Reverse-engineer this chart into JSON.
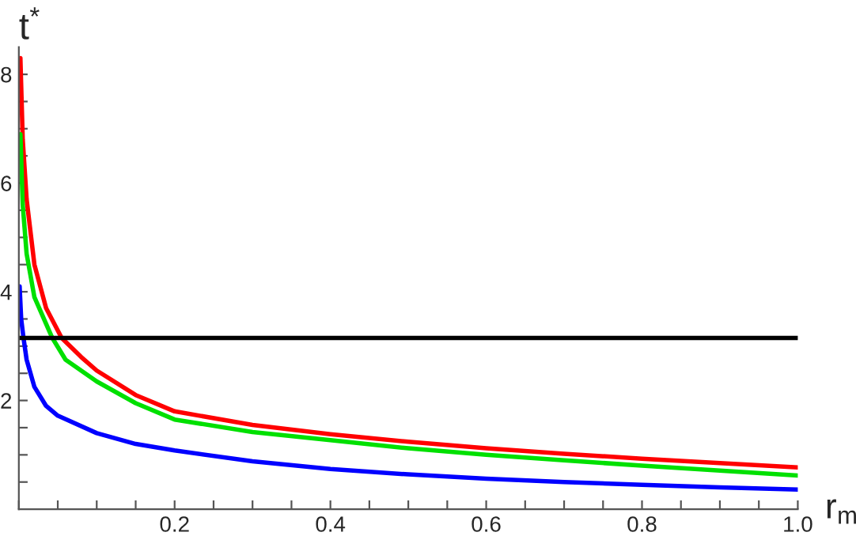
{
  "chart_data": {
    "type": "line",
    "xlabel": "r$_{m}$",
    "ylabel": "t$^{*}$",
    "xlim": [
      0,
      1.0
    ],
    "ylim": [
      0,
      8.5
    ],
    "xticks": [
      {
        "value": 0,
        "label": null
      },
      {
        "value": 0.05,
        "label": null
      },
      {
        "value": 0.1,
        "label": null
      },
      {
        "value": 0.15,
        "label": null
      },
      0.2,
      {
        "value": 0.25,
        "label": null
      },
      {
        "value": 0.3,
        "label": null
      },
      {
        "value": 0.35,
        "label": null
      },
      0.4,
      {
        "value": 0.45,
        "label": null
      },
      {
        "value": 0.5,
        "label": null
      },
      {
        "value": 0.55,
        "label": null
      },
      0.6,
      {
        "value": 0.65,
        "label": null
      },
      {
        "value": 0.7,
        "label": null
      },
      {
        "value": 0.75,
        "label": null
      },
      0.8,
      {
        "value": 0.85,
        "label": null
      },
      {
        "value": 0.9,
        "label": null
      },
      {
        "value": 0.95,
        "label": null
      },
      {
        "value": 1.0,
        "label": "1.0"
      }
    ],
    "yticks": [
      {
        "value": 0.5,
        "label": null
      },
      {
        "value": 1,
        "label": null
      },
      {
        "value": 1.5,
        "label": null
      },
      2,
      {
        "value": 2.5,
        "label": null
      },
      {
        "value": 3,
        "label": null
      },
      {
        "value": 3.5,
        "label": null
      },
      4,
      {
        "value": 4.5,
        "label": null
      },
      {
        "value": 5,
        "label": null
      },
      {
        "value": 5.5,
        "label": null
      },
      6,
      {
        "value": 6.5,
        "label": null
      },
      {
        "value": 7,
        "label": null
      },
      {
        "value": 7.5,
        "label": null
      },
      8
    ],
    "grid": false,
    "legend": false,
    "line_style": "solid",
    "ref_lines": [
      {
        "axis": "y",
        "value": 3.15,
        "color": "#000000"
      }
    ],
    "series": [
      {
        "color": "#ff0000",
        "x": [
          0.002,
          0.005,
          0.01,
          0.02,
          0.035,
          0.055,
          0.08,
          0.1,
          0.15,
          0.2,
          0.3,
          0.4,
          0.5,
          0.6,
          0.7,
          0.8,
          0.9,
          1.0
        ],
        "values": [
          8.3,
          6.8,
          5.7,
          4.5,
          3.7,
          3.15,
          2.8,
          2.55,
          2.1,
          1.8,
          1.55,
          1.38,
          1.24,
          1.12,
          1.02,
          0.93,
          0.85,
          0.77
        ]
      },
      {
        "color": "#00e000",
        "x": [
          0.002,
          0.005,
          0.01,
          0.02,
          0.043,
          0.06,
          0.1,
          0.15,
          0.2,
          0.3,
          0.4,
          0.5,
          0.6,
          0.7,
          0.8,
          0.9,
          1.0
        ],
        "values": [
          6.9,
          5.6,
          4.7,
          3.9,
          3.15,
          2.75,
          2.35,
          1.95,
          1.65,
          1.42,
          1.27,
          1.12,
          1.0,
          0.9,
          0.8,
          0.71,
          0.62
        ]
      },
      {
        "color": "#0000ff",
        "x": [
          0.001,
          0.003,
          0.006,
          0.01,
          0.02,
          0.035,
          0.05,
          0.1,
          0.15,
          0.2,
          0.3,
          0.4,
          0.5,
          0.6,
          0.7,
          0.8,
          0.9,
          1.0
        ],
        "values": [
          4.1,
          3.5,
          3.15,
          2.75,
          2.25,
          1.9,
          1.72,
          1.4,
          1.2,
          1.08,
          0.88,
          0.74,
          0.64,
          0.56,
          0.5,
          0.45,
          0.4,
          0.36
        ]
      }
    ]
  }
}
